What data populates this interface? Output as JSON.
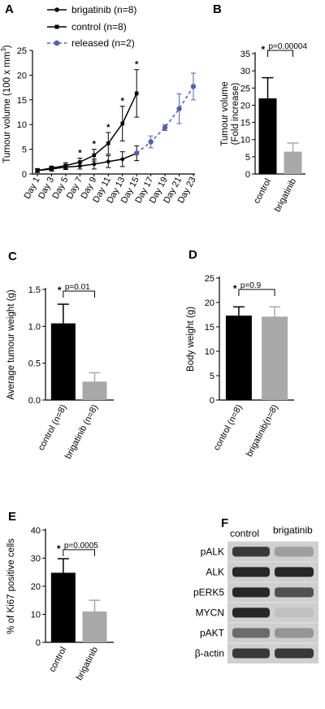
{
  "panels": {
    "A": "A",
    "B": "B",
    "C": "C",
    "D": "D",
    "E": "E",
    "F": "F"
  },
  "chart_data": [
    {
      "id": "A",
      "type": "line",
      "ylabel": "Tumour volume (100 x mm³)",
      "ylabel_main": "Tumour volume (100 x mm",
      "ylabel_sup": "3",
      "ylabel_close": ")",
      "ylim": [
        0,
        25
      ],
      "yticks": [
        "0",
        "5",
        "10",
        "15",
        "20",
        "25"
      ],
      "categories": [
        "Day 1",
        "Day 3",
        "Day 5",
        "Day 7",
        "Day 9",
        "Day 11",
        "Day 13",
        "Day 15",
        "Day 17",
        "Day 19",
        "Day 21",
        "Day 23"
      ],
      "series": [
        {
          "name": "brigatinib (n=8)",
          "color": "#000000",
          "marker": "circle",
          "dash": false,
          "values": [
            0.7,
            1.0,
            1.4,
            1.6,
            2.0,
            2.5,
            3.0,
            4.2,
            null,
            null,
            null,
            null
          ],
          "errors": [
            0.3,
            0.4,
            0.5,
            0.6,
            1.0,
            1.2,
            1.5,
            1.5,
            null,
            null,
            null,
            null
          ]
        },
        {
          "name": "control (n=8)",
          "color": "#000000",
          "marker": "square",
          "dash": false,
          "values": [
            0.7,
            1.2,
            1.7,
            2.4,
            3.8,
            6.2,
            10.2,
            16.3,
            null,
            null,
            null,
            null
          ],
          "errors": [
            0.4,
            0.4,
            0.6,
            0.8,
            1.2,
            2.2,
            3.5,
            4.8,
            null,
            null,
            null,
            null
          ]
        },
        {
          "name": "released (n=2)",
          "color": "#5560a8",
          "marker": "circle",
          "dash": true,
          "values": [
            null,
            null,
            null,
            null,
            null,
            null,
            null,
            4.2,
            6.5,
            9.4,
            13.2,
            17.7
          ],
          "errors": [
            null,
            null,
            null,
            null,
            null,
            null,
            null,
            0,
            1.2,
            0.6,
            3.0,
            2.7
          ]
        }
      ],
      "significance": [
        "",
        "",
        "",
        "*",
        "*",
        "*",
        "*",
        "*",
        "",
        "",
        "",
        ""
      ]
    },
    {
      "id": "B",
      "type": "bar",
      "ylabel": "Tumour volume (Fold increase)",
      "ylabel_line1": "Tumour volume",
      "ylabel_line2": "(Fold increase)",
      "ylim": [
        0,
        35
      ],
      "yticks": [
        "0",
        "5",
        "10",
        "15",
        "20",
        "25",
        "30",
        "35"
      ],
      "categories": [
        "control",
        "brigatinib"
      ],
      "values": [
        22,
        6.5
      ],
      "errors": [
        6,
        2.5
      ],
      "colors": [
        "#000000",
        "#a9a9aa"
      ],
      "annotation_star": "*",
      "annotation": "p=0.00004"
    },
    {
      "id": "C",
      "type": "bar",
      "ylabel": "Average tumour weight (g)",
      "ylim": [
        0,
        1.5
      ],
      "yticks": [
        "0.0",
        "0.5",
        "1.0",
        "1.5"
      ],
      "categories": [
        "control (n=8)",
        "brigatinib (n=8)"
      ],
      "values": [
        1.04,
        0.25
      ],
      "errors": [
        0.26,
        0.12
      ],
      "colors": [
        "#000000",
        "#a9a9aa"
      ],
      "annotation_star": "*",
      "annotation": "p=0.01"
    },
    {
      "id": "D",
      "type": "bar",
      "ylabel": "Body weight (g)",
      "ylim": [
        0,
        25
      ],
      "yticks": [
        "0",
        "5",
        "10",
        "15",
        "20",
        "25"
      ],
      "categories": [
        "control (n=8)",
        "brigatinib(n=8)"
      ],
      "values": [
        17.3,
        17.1
      ],
      "errors": [
        1.8,
        2.0
      ],
      "colors": [
        "#000000",
        "#a9a9aa"
      ],
      "annotation_star": "*",
      "annotation": "p=0.9"
    },
    {
      "id": "E",
      "type": "bar",
      "ylabel": "% of Ki67 positive cells",
      "ylim": [
        0,
        40
      ],
      "yticks": [
        "0",
        "10",
        "20",
        "30",
        "40"
      ],
      "categories": [
        "control",
        "brigatinib"
      ],
      "values": [
        24.8,
        11
      ],
      "errors": [
        5,
        4
      ],
      "colors": [
        "#000000",
        "#a9a9aa"
      ],
      "annotation_star": "*",
      "annotation": "p=0.0005"
    }
  ],
  "blot": {
    "columns": [
      "control",
      "brigatinib"
    ],
    "rows": [
      "pALK",
      "ALK",
      "pERK5",
      "MYCN",
      "pAKT",
      "β-actin"
    ],
    "intensity_control": [
      0.85,
      0.95,
      0.95,
      0.95,
      0.55,
      0.85
    ],
    "intensity_brigatinib": [
      0.25,
      0.95,
      0.7,
      0.05,
      0.3,
      0.85
    ]
  }
}
